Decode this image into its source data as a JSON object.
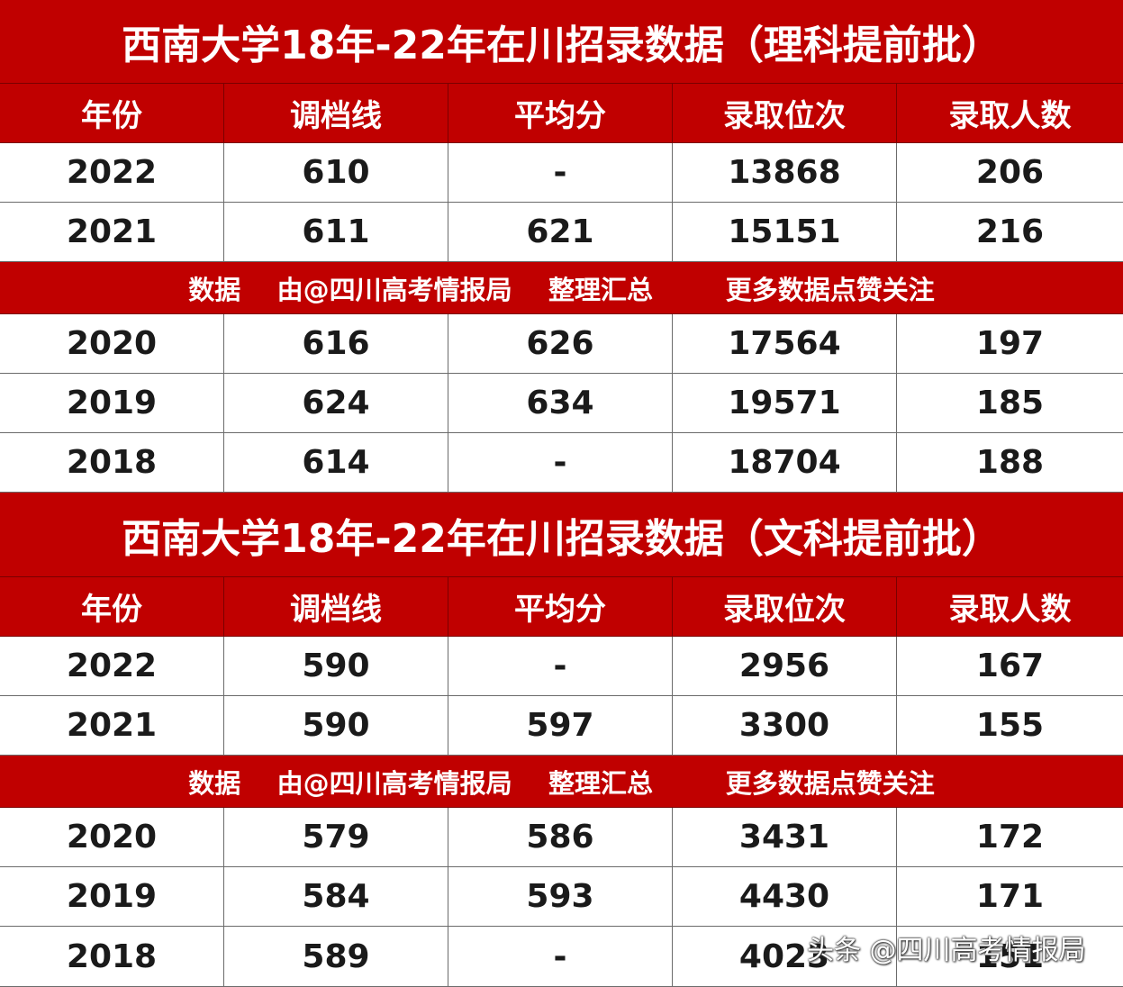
{
  "science": {
    "title": "西南大学18年-22年在川招录数据（理科提前批）",
    "headers": [
      "年份",
      "调档线",
      "平均分",
      "录取位次",
      "录取人数"
    ],
    "rows_top": [
      [
        "2022",
        "610",
        "-",
        "13868",
        "206"
      ],
      [
        "2021",
        "611",
        "621",
        "15151",
        "216"
      ]
    ],
    "banner": {
      "part1": "数据",
      "part2": "由@四川高考情报局",
      "part3": "整理汇总",
      "part4": "更多数据点赞关注"
    },
    "rows_bottom": [
      [
        "2020",
        "616",
        "626",
        "17564",
        "197"
      ],
      [
        "2019",
        "624",
        "634",
        "19571",
        "185"
      ],
      [
        "2018",
        "614",
        "-",
        "18704",
        "188"
      ]
    ]
  },
  "arts": {
    "title": "西南大学18年-22年在川招录数据（文科提前批）",
    "headers": [
      "年份",
      "调档线",
      "平均分",
      "录取位次",
      "录取人数"
    ],
    "rows_top": [
      [
        "2022",
        "590",
        "-",
        "2956",
        "167"
      ],
      [
        "2021",
        "590",
        "597",
        "3300",
        "155"
      ]
    ],
    "banner": {
      "part1": "数据",
      "part2": "由@四川高考情报局",
      "part3": "整理汇总",
      "part4": "更多数据点赞关注"
    },
    "rows_bottom": [
      [
        "2020",
        "579",
        "586",
        "3431",
        "172"
      ],
      [
        "2019",
        "584",
        "593",
        "4430",
        "171"
      ],
      [
        "2018",
        "589",
        "-",
        "4023",
        "151"
      ]
    ]
  },
  "watermark": "头条 @四川高考情报局",
  "colors": {
    "header_red": "#c00000",
    "text_dark": "#1a1a1a"
  }
}
